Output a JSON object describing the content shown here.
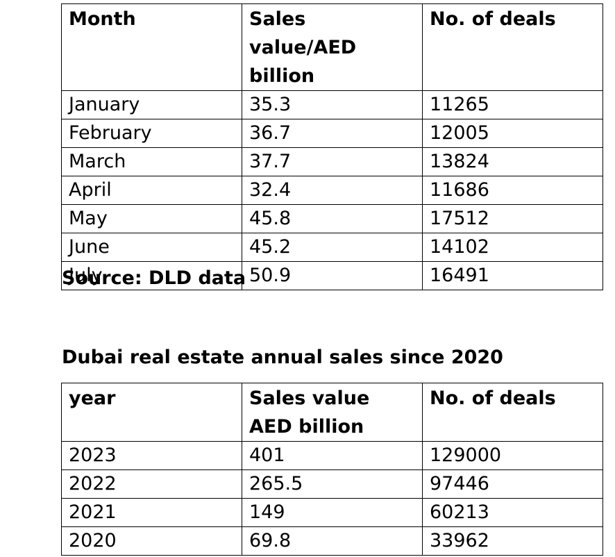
{
  "monthly_table": {
    "headers": [
      "Month",
      "Sales value/AED billion",
      "No. of deals"
    ],
    "rows": [
      [
        "January",
        "35.3",
        "11265"
      ],
      [
        "February",
        "36.7",
        "12005"
      ],
      [
        "March",
        "37.7",
        "13824"
      ],
      [
        "April",
        "32.4",
        "11686"
      ],
      [
        "May",
        "45.8",
        "17512"
      ],
      [
        "June",
        "45.2",
        "14102"
      ],
      [
        "July",
        "50.9",
        "16491"
      ]
    ]
  },
  "source_note": "Source: DLD data",
  "annual_section_title": "Dubai real estate annual sales since 2020",
  "annual_table": {
    "headers": [
      "year",
      "Sales value AED billion",
      "No. of deals"
    ],
    "rows": [
      [
        "2023",
        "401",
        "129000"
      ],
      [
        "2022",
        "265.5",
        "97446"
      ],
      [
        "2021",
        "149",
        "60213"
      ],
      [
        "2020",
        "69.8",
        "33962"
      ]
    ]
  }
}
